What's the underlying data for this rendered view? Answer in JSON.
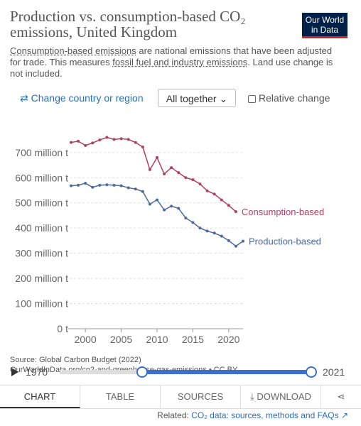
{
  "chart_data": {
    "type": "line",
    "title": "Production vs. consumption-based CO₂ emissions, United Kingdom",
    "subtitle": [
      "Consumption-based emissions",
      " are national emissions that have been adjusted for trade. This measures ",
      "fossil fuel and industry emissions",
      ". Land use change is not included."
    ],
    "logo": "Our World in Data",
    "source": [
      "Source: Global Carbon Budget (2022)",
      "OurWorldInData.org/co2-and-greenhouse-gas-emissions • CC BY"
    ],
    "x": [
      1998,
      1999,
      2000,
      2001,
      2002,
      2003,
      2004,
      2005,
      2006,
      2007,
      2008,
      2009,
      2010,
      2011,
      2012,
      2013,
      2014,
      2015,
      2016,
      2017,
      2018,
      2019,
      2020,
      2021,
      2022
    ],
    "series": [
      {
        "name": "Consumption-based",
        "color": "#b13f5f",
        "values": [
          740,
          745,
          728,
          738,
          750,
          760,
          752,
          755,
          752,
          740,
          722,
          632,
          680,
          615,
          640,
          620,
          600,
          592,
          575,
          548,
          535,
          512,
          490,
          465,
          null
        ]
      },
      {
        "name": "Production-based",
        "color": "#4c6a9c",
        "values": [
          568,
          570,
          578,
          562,
          570,
          572,
          570,
          568,
          560,
          555,
          545,
          495,
          512,
          472,
          487,
          478,
          440,
          422,
          400,
          388,
          380,
          368,
          350,
          328,
          348
        ]
      }
    ],
    "xlim": [
      1998,
      2022
    ],
    "xticks": [
      2000,
      2005,
      2010,
      2015,
      2020
    ],
    "ylim": [
      0,
      770
    ],
    "yticks": [
      {
        "value": 0,
        "label": "0 t"
      },
      {
        "value": 100,
        "label": "100 million t"
      },
      {
        "value": 200,
        "label": "200 million t"
      },
      {
        "value": 300,
        "label": "300 million t"
      },
      {
        "value": 400,
        "label": "400 million t"
      },
      {
        "value": 500,
        "label": "500 million t"
      },
      {
        "value": 600,
        "label": "600 million t"
      },
      {
        "value": 700,
        "label": "700 million t"
      }
    ],
    "grid": true
  },
  "ui": {
    "change": "⇄ Change country or region",
    "together": "All together ⌄",
    "relative": "Relative change",
    "slider_start": "1970",
    "slider_end": "2021",
    "tabs": [
      "CHART",
      "TABLE",
      "SOURCES",
      "⤓ DOWNLOAD",
      "⋖"
    ],
    "related_prefix": "Related: ",
    "related_link": "CO₂ data: sources, methods and FAQs ↗"
  }
}
